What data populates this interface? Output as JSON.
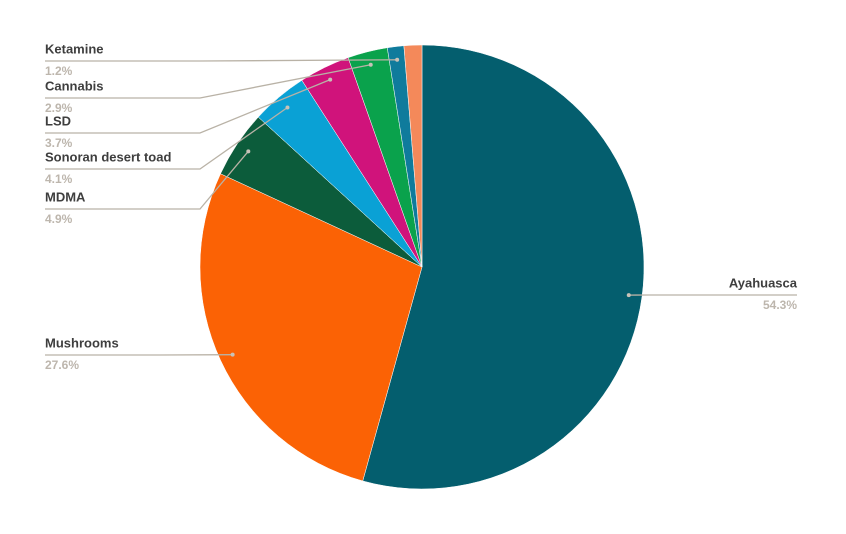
{
  "chart_data": {
    "type": "pie",
    "categories": [
      "Ayahuasca",
      "Mushrooms",
      "MDMA",
      "Sonoran desert toad",
      "LSD",
      "Cannabis",
      "Ketamine",
      null
    ],
    "values": [
      54.3,
      27.6,
      4.9,
      4.1,
      3.7,
      2.9,
      1.2,
      1.3
    ],
    "value_labels": [
      "54.3%",
      "27.6%",
      "4.9%",
      "4.1%",
      "3.7%",
      "2.9%",
      "1.2%",
      null
    ],
    "colors": [
      "#045e6e",
      "#fb6205",
      "#0c5c3b",
      "#0aa1d5",
      "#d0137b",
      "#0aa24c",
      "#0f7b9c",
      "#f4895a"
    ]
  }
}
